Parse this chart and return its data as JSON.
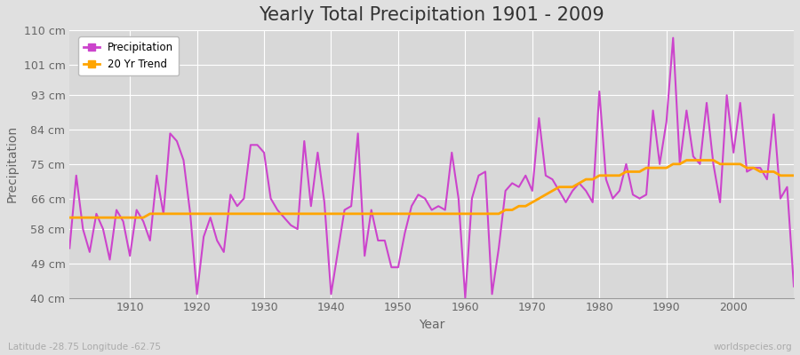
{
  "title": "Yearly Total Precipitation 1901 - 2009",
  "xlabel": "Year",
  "ylabel": "Precipitation",
  "lat_lon_label": "Latitude -28.75 Longitude -62.75",
  "watermark": "worldspecies.org",
  "years": [
    1901,
    1902,
    1903,
    1904,
    1905,
    1906,
    1907,
    1908,
    1909,
    1910,
    1911,
    1912,
    1913,
    1914,
    1915,
    1916,
    1917,
    1918,
    1919,
    1920,
    1921,
    1922,
    1923,
    1924,
    1925,
    1926,
    1927,
    1928,
    1929,
    1930,
    1931,
    1932,
    1933,
    1934,
    1935,
    1936,
    1937,
    1938,
    1939,
    1940,
    1941,
    1942,
    1943,
    1944,
    1945,
    1946,
    1947,
    1948,
    1949,
    1950,
    1951,
    1952,
    1953,
    1954,
    1955,
    1956,
    1957,
    1958,
    1959,
    1960,
    1961,
    1962,
    1963,
    1964,
    1965,
    1966,
    1967,
    1968,
    1969,
    1970,
    1971,
    1972,
    1973,
    1974,
    1975,
    1976,
    1977,
    1978,
    1979,
    1980,
    1981,
    1982,
    1983,
    1984,
    1985,
    1986,
    1987,
    1988,
    1989,
    1990,
    1991,
    1992,
    1993,
    1994,
    1995,
    1996,
    1997,
    1998,
    1999,
    2000,
    2001,
    2002,
    2003,
    2004,
    2005,
    2006,
    2007,
    2008,
    2009
  ],
  "precipitation": [
    53,
    72,
    58,
    52,
    62,
    58,
    50,
    63,
    60,
    51,
    63,
    60,
    55,
    72,
    62,
    83,
    81,
    76,
    62,
    41,
    56,
    61,
    55,
    52,
    67,
    64,
    66,
    80,
    80,
    78,
    66,
    63,
    61,
    59,
    58,
    81,
    64,
    78,
    65,
    41,
    52,
    63,
    64,
    83,
    51,
    63,
    55,
    55,
    48,
    48,
    57,
    64,
    67,
    66,
    63,
    64,
    63,
    78,
    66,
    40,
    66,
    72,
    73,
    41,
    53,
    68,
    70,
    69,
    72,
    68,
    87,
    72,
    71,
    68,
    65,
    68,
    70,
    68,
    65,
    94,
    71,
    66,
    68,
    75,
    67,
    66,
    67,
    89,
    75,
    86,
    108,
    75,
    89,
    77,
    75,
    91,
    75,
    65,
    93,
    78,
    91,
    73,
    74,
    74,
    71,
    88,
    66,
    69,
    43
  ],
  "trend": [
    61,
    61,
    61,
    61,
    61,
    61,
    61,
    61,
    61,
    61,
    61,
    61,
    62,
    62,
    62,
    62,
    62,
    62,
    62,
    62,
    62,
    62,
    62,
    62,
    62,
    62,
    62,
    62,
    62,
    62,
    62,
    62,
    62,
    62,
    62,
    62,
    62,
    62,
    62,
    62,
    62,
    62,
    62,
    62,
    62,
    62,
    62,
    62,
    62,
    62,
    62,
    62,
    62,
    62,
    62,
    62,
    62,
    62,
    62,
    62,
    62,
    62,
    62,
    62,
    62,
    63,
    63,
    64,
    64,
    65,
    66,
    67,
    68,
    69,
    69,
    69,
    70,
    71,
    71,
    72,
    72,
    72,
    72,
    73,
    73,
    73,
    74,
    74,
    74,
    74,
    75,
    75,
    76,
    76,
    76,
    76,
    76,
    75,
    75,
    75,
    75,
    74,
    74,
    73,
    73,
    73,
    72,
    72,
    72
  ],
  "precip_color": "#CC44CC",
  "trend_color": "#FFA500",
  "bg_color": "#E0E0E0",
  "plot_bg_color": "#D8D8D8",
  "grid_color": "#FFFFFF",
  "ylim": [
    40,
    110
  ],
  "yticks": [
    40,
    49,
    58,
    66,
    75,
    84,
    93,
    101,
    110
  ],
  "ytick_labels": [
    "40 cm",
    "49 cm",
    "58 cm",
    "66 cm",
    "75 cm",
    "84 cm",
    "93 cm",
    "101 cm",
    "110 cm"
  ],
  "xticks": [
    1910,
    1920,
    1930,
    1940,
    1950,
    1960,
    1970,
    1980,
    1990,
    2000
  ],
  "title_fontsize": 15,
  "axis_label_fontsize": 10,
  "tick_fontsize": 9
}
